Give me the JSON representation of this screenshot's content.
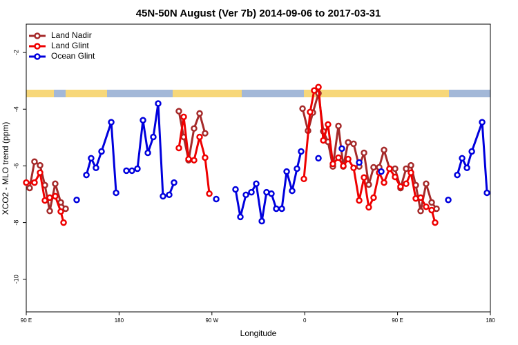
{
  "chart_data": {
    "type": "line",
    "title": "45N-50N August (Ver 7b)   2014-09-06 to 2017-03-31",
    "xlabel": "Longitude",
    "ylabel": "XCO2 - MLO trend (ppm)",
    "xlim": [
      90,
      540
    ],
    "ylim": [
      -11.15,
      -1.0
    ],
    "xticks": [
      {
        "value": 90,
        "label": "90 E"
      },
      180,
      {
        "value": 270,
        "label": "90 W"
      },
      {
        "value": 360,
        "label": "0"
      },
      {
        "value": 450,
        "label": "90 E"
      },
      {
        "value": 540,
        "label": "180"
      }
    ],
    "yticks": [
      -10,
      -8,
      -6,
      -4,
      -2
    ],
    "legend": "upper left",
    "series": [
      {
        "name": "Land Nadir",
        "color": "#a52a2a",
        "x": [
          93.3,
          98.0,
          103.4,
          108.1,
          112.8,
          118.1,
          123.5,
          128.2,
          null,
          238.0,
          242.7,
          247.4,
          252.7,
          258.1,
          263.4,
          null,
          357.9,
          363.2,
          367.9,
          373.3,
          378.0,
          382.6,
          387.3,
          392.7,
          397.4,
          402.1,
          407.4,
          412.8,
          417.5,
          422.1,
          426.8,
          432.2,
          436.9,
          442.2,
          447.6,
          452.9,
          458.3,
          463.0,
          467.7,
          472.4,
          477.7,
          483.1,
          487.8
        ],
        "values": [
          -6.78,
          -5.85,
          -5.98,
          -6.68,
          -7.59,
          -6.63,
          -7.29,
          -7.51,
          null,
          -4.07,
          -4.98,
          -5.8,
          -4.68,
          -4.15,
          -4.85,
          null,
          -3.98,
          -4.76,
          -4.12,
          -3.44,
          -4.78,
          -5.15,
          -6.02,
          -4.59,
          -6.02,
          -5.17,
          -5.22,
          -6.02,
          -5.54,
          -6.66,
          -6.05,
          -6.05,
          -5.44,
          -6.1,
          -6.1,
          -6.78,
          -6.1,
          -5.98,
          -6.68,
          -7.59,
          -6.63,
          -7.29,
          -7.51
        ]
      },
      {
        "name": "Land Glint",
        "color": "#ee0000",
        "x": [
          90.0,
          98.0,
          103.4,
          108.1,
          112.8,
          118.1,
          123.5,
          126.2,
          null,
          238.0,
          242.7,
          247.4,
          252.7,
          258.1,
          263.4,
          267.5,
          null,
          359.2,
          365.2,
          369.2,
          373.3,
          378.0,
          382.6,
          387.3,
          392.7,
          397.4,
          402.1,
          407.4,
          412.8,
          417.5,
          422.1,
          426.8,
          432.2,
          436.9,
          442.2,
          447.6,
          452.9,
          458.3,
          463.0,
          467.7,
          472.4,
          477.7,
          483.1,
          486.4
        ],
        "values": [
          -6.59,
          -6.59,
          -6.24,
          -7.22,
          -7.12,
          -7.07,
          -7.61,
          -8.0,
          null,
          -5.37,
          -4.27,
          -5.76,
          -5.8,
          -4.98,
          -5.71,
          -6.98,
          null,
          -6.46,
          -4.1,
          -3.34,
          -3.22,
          -5.1,
          -4.54,
          -5.93,
          -5.71,
          -6.0,
          -5.76,
          -6.07,
          -7.22,
          -6.41,
          -7.46,
          -7.12,
          -6.24,
          -6.59,
          -6.1,
          -6.39,
          -6.73,
          -6.63,
          -6.24,
          -7.15,
          -7.12,
          -7.44,
          -7.56,
          -8.0
        ]
      },
      {
        "name": "Ocean Glint",
        "color": "#0000dd",
        "x": [
          138.9,
          null,
          148.3,
          152.9,
          157.6,
          163.0,
          172.4,
          177.1,
          null,
          187.1,
          192.5,
          197.8,
          203.2,
          207.9,
          213.2,
          217.9,
          222.6,
          228.6,
          233.3,
          null,
          274.2,
          null,
          292.9,
          297.6,
          303.0,
          308.3,
          313.0,
          318.4,
          323.0,
          327.7,
          332.4,
          337.8,
          342.5,
          347.8,
          352.5,
          356.5,
          null,
          373.3,
          null,
          396.0,
          null,
          412.8,
          null,
          434.2,
          null,
          499.2,
          null,
          507.9,
          512.6,
          517.3,
          522.0,
          532.0,
          536.7
        ],
        "values": [
          -7.2,
          null,
          -6.32,
          -5.73,
          -6.07,
          -5.49,
          -4.46,
          -6.95,
          null,
          -6.17,
          -6.17,
          -6.1,
          -4.39,
          -5.54,
          -4.98,
          -3.8,
          -7.07,
          -7.02,
          -6.59,
          null,
          -7.17,
          null,
          -6.83,
          -7.8,
          -7.02,
          -6.93,
          -6.63,
          -7.95,
          -6.93,
          -6.98,
          -7.51,
          -7.51,
          -6.2,
          -6.88,
          -6.1,
          -5.49,
          null,
          -5.73,
          null,
          -5.39,
          null,
          -5.88,
          null,
          -6.2,
          null,
          -7.2,
          null,
          -6.32,
          -5.73,
          -6.07,
          -5.49,
          -4.46,
          -6.95
        ]
      }
    ]
  }
}
